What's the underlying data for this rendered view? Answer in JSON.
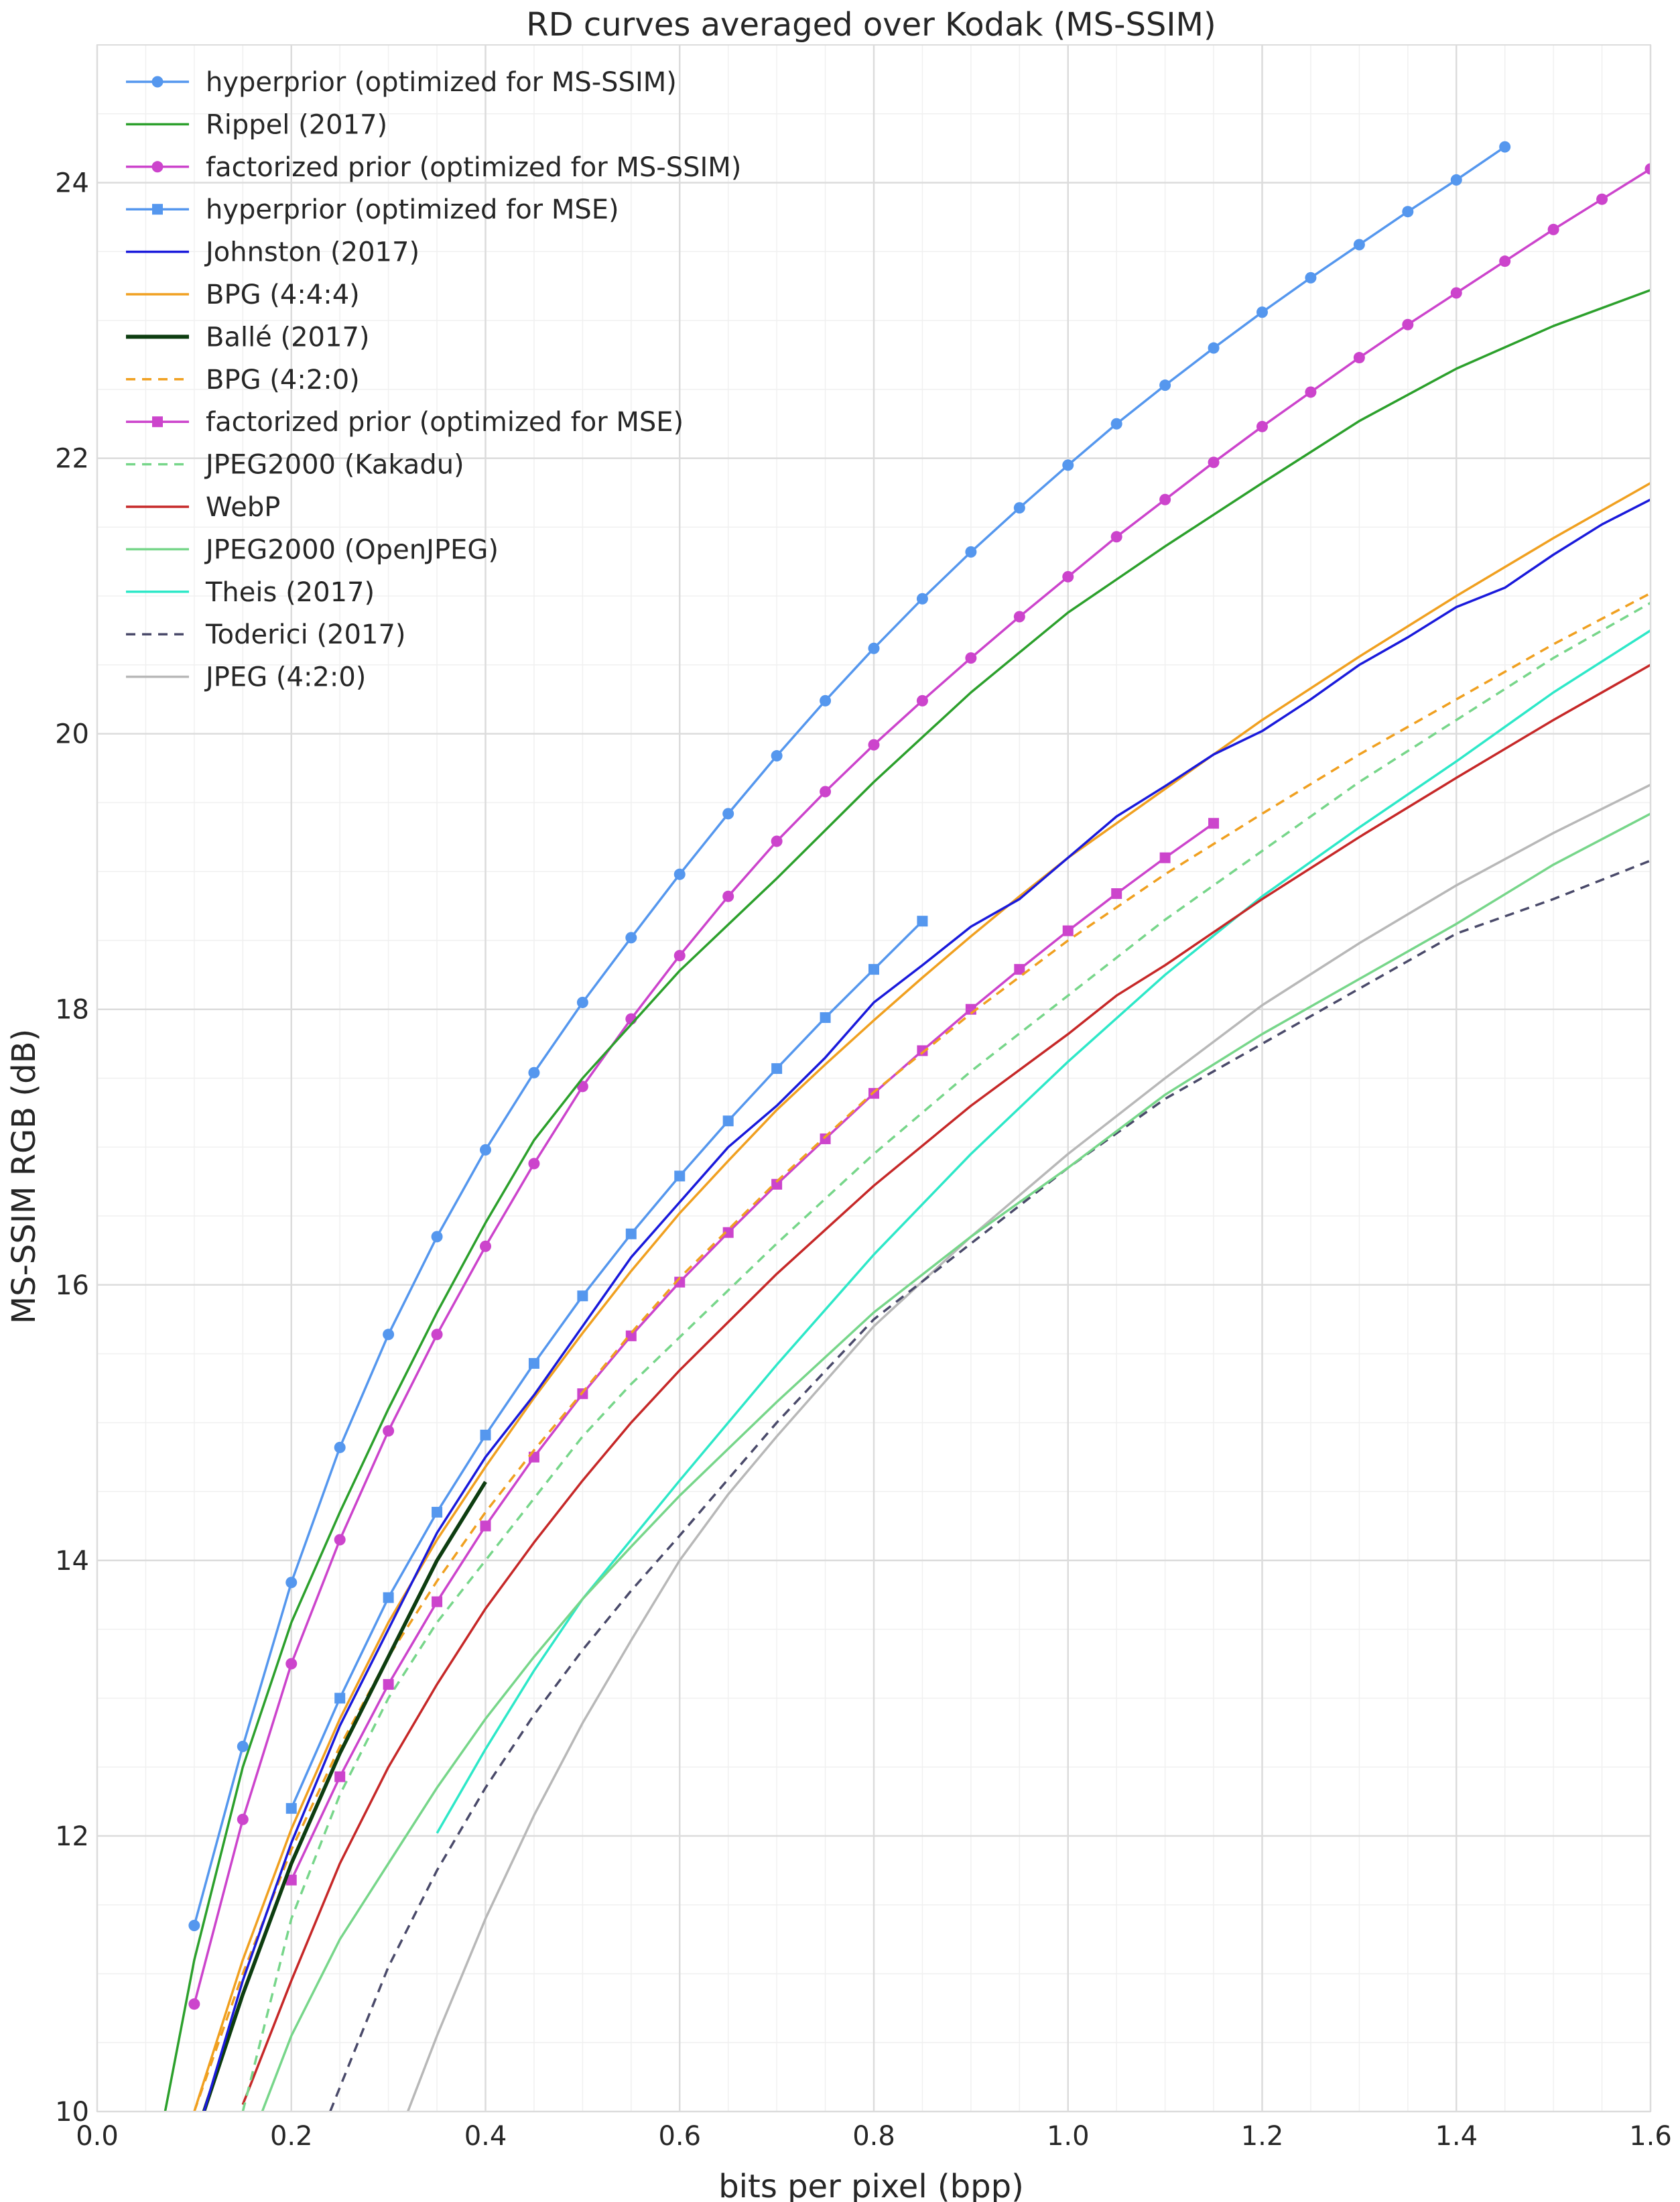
{
  "chart_data": {
    "type": "line",
    "title": "RD curves averaged over Kodak (MS-SSIM)",
    "xlabel": "bits per pixel (bpp)",
    "ylabel": "MS-SSIM RGB (dB)",
    "xlim": [
      0.0,
      1.6
    ],
    "ylim": [
      10,
      25
    ],
    "xticks": [
      0.0,
      0.2,
      0.4,
      0.6,
      0.8,
      1.0,
      1.2,
      1.4,
      1.6
    ],
    "xtick_labels": [
      "0.0",
      "0.2",
      "0.4",
      "0.6",
      "0.8",
      "1.0",
      "1.2",
      "1.4",
      "1.6"
    ],
    "yticks": [
      10,
      12,
      14,
      16,
      18,
      20,
      22,
      24
    ],
    "ytick_labels": [
      "10",
      "12",
      "14",
      "16",
      "18",
      "20",
      "22",
      "24"
    ],
    "grid": true,
    "legend_position": "top-left",
    "series": [
      {
        "name": "hyperprior (optimized for MS-SSIM)",
        "color": "#5597ee",
        "dash": "solid",
        "marker": "circle",
        "x": [
          0.1,
          0.15,
          0.2,
          0.25,
          0.3,
          0.35,
          0.4,
          0.45,
          0.5,
          0.55,
          0.6,
          0.65,
          0.7,
          0.75,
          0.8,
          0.85,
          0.9,
          0.95,
          1.0,
          1.05,
          1.1,
          1.15,
          1.2,
          1.25,
          1.3,
          1.35,
          1.4,
          1.45
        ],
        "y": [
          11.35,
          12.65,
          13.84,
          14.82,
          15.64,
          16.35,
          16.98,
          17.54,
          18.05,
          18.52,
          18.98,
          19.42,
          19.84,
          20.24,
          20.62,
          20.98,
          21.32,
          21.64,
          21.95,
          22.25,
          22.53,
          22.8,
          23.06,
          23.31,
          23.55,
          23.79,
          24.02,
          24.26
        ]
      },
      {
        "name": "Rippel (2017)",
        "color": "#2ca02c",
        "dash": "solid",
        "marker": "none",
        "x": [
          0.07,
          0.1,
          0.15,
          0.2,
          0.25,
          0.3,
          0.35,
          0.4,
          0.45,
          0.5,
          0.6,
          0.7,
          0.8,
          0.9,
          1.0,
          1.1,
          1.2,
          1.3,
          1.4,
          1.5,
          1.6
        ],
        "y": [
          10.0,
          11.1,
          12.5,
          13.55,
          14.35,
          15.1,
          15.8,
          16.45,
          17.05,
          17.5,
          18.28,
          18.95,
          19.65,
          20.3,
          20.88,
          21.36,
          21.82,
          22.27,
          22.65,
          22.96,
          23.22
        ]
      },
      {
        "name": "factorized prior (optimized for MS-SSIM)",
        "color": "#cc44cc",
        "dash": "solid",
        "marker": "circle",
        "x": [
          0.1,
          0.15,
          0.2,
          0.25,
          0.3,
          0.35,
          0.4,
          0.45,
          0.5,
          0.55,
          0.6,
          0.65,
          0.7,
          0.75,
          0.8,
          0.85,
          0.9,
          0.95,
          1.0,
          1.05,
          1.1,
          1.15,
          1.2,
          1.25,
          1.3,
          1.35,
          1.4,
          1.45,
          1.5,
          1.55,
          1.6
        ],
        "y": [
          10.78,
          12.12,
          13.25,
          14.15,
          14.94,
          15.64,
          16.28,
          16.88,
          17.44,
          17.93,
          18.39,
          18.82,
          19.22,
          19.58,
          19.92,
          20.24,
          20.55,
          20.85,
          21.14,
          21.43,
          21.7,
          21.97,
          22.23,
          22.48,
          22.73,
          22.97,
          23.2,
          23.43,
          23.66,
          23.88,
          24.1
        ]
      },
      {
        "name": "hyperprior (optimized for MSE)",
        "color": "#5597ee",
        "dash": "solid",
        "marker": "square",
        "x": [
          0.2,
          0.25,
          0.3,
          0.35,
          0.4,
          0.45,
          0.5,
          0.55,
          0.6,
          0.65,
          0.7,
          0.75,
          0.8,
          0.85
        ],
        "y": [
          12.2,
          13.0,
          13.73,
          14.35,
          14.91,
          15.43,
          15.92,
          16.37,
          16.79,
          17.19,
          17.57,
          17.94,
          18.29,
          18.64
        ]
      },
      {
        "name": "Johnston (2017)",
        "color": "#1a1adb",
        "dash": "solid",
        "marker": "none",
        "x": [
          0.11,
          0.15,
          0.2,
          0.25,
          0.3,
          0.35,
          0.4,
          0.45,
          0.5,
          0.55,
          0.6,
          0.65,
          0.7,
          0.75,
          0.8,
          0.85,
          0.9,
          0.95,
          1.0,
          1.05,
          1.1,
          1.15,
          1.2,
          1.25,
          1.3,
          1.35,
          1.4,
          1.45,
          1.5,
          1.55,
          1.6
        ],
        "y": [
          10.0,
          10.95,
          11.95,
          12.8,
          13.5,
          14.2,
          14.75,
          15.2,
          15.7,
          16.2,
          16.6,
          17.0,
          17.3,
          17.65,
          18.05,
          18.32,
          18.6,
          18.8,
          19.1,
          19.4,
          19.62,
          19.85,
          20.02,
          20.25,
          20.5,
          20.7,
          20.92,
          21.06,
          21.3,
          21.52,
          21.7
        ]
      },
      {
        "name": "BPG (4:4:4)",
        "color": "#f0a020",
        "dash": "solid",
        "marker": "none",
        "x": [
          0.1,
          0.15,
          0.2,
          0.25,
          0.3,
          0.35,
          0.4,
          0.45,
          0.5,
          0.55,
          0.6,
          0.65,
          0.7,
          0.75,
          0.8,
          0.85,
          0.9,
          0.95,
          1.0,
          1.1,
          1.2,
          1.3,
          1.4,
          1.5,
          1.6
        ],
        "y": [
          10.0,
          11.1,
          12.05,
          12.85,
          13.55,
          14.15,
          14.68,
          15.18,
          15.65,
          16.1,
          16.52,
          16.9,
          17.27,
          17.6,
          17.92,
          18.23,
          18.53,
          18.82,
          19.1,
          19.6,
          20.1,
          20.56,
          21.0,
          21.42,
          21.82
        ]
      },
      {
        "name": "Ballé (2017)",
        "color": "#0d3d10",
        "dash": "solid",
        "marker": "none",
        "x": [
          0.11,
          0.15,
          0.2,
          0.25,
          0.3,
          0.35,
          0.4
        ],
        "y": [
          10.0,
          10.85,
          11.8,
          12.6,
          13.3,
          14.0,
          14.57
        ]
      },
      {
        "name": "BPG (4:2:0)",
        "color": "#f0a020",
        "dash": "dashed",
        "marker": "none",
        "x": [
          0.1,
          0.15,
          0.2,
          0.25,
          0.3,
          0.35,
          0.4,
          0.45,
          0.5,
          0.55,
          0.6,
          0.7,
          0.8,
          0.9,
          1.0,
          1.1,
          1.2,
          1.3,
          1.4,
          1.5,
          1.6
        ],
        "y": [
          10.0,
          11.0,
          11.9,
          12.65,
          13.3,
          13.85,
          14.35,
          14.8,
          15.22,
          15.65,
          16.05,
          16.75,
          17.4,
          17.97,
          18.5,
          18.98,
          19.42,
          19.85,
          20.25,
          20.65,
          21.02
        ]
      },
      {
        "name": "factorized prior (optimized for MSE)",
        "color": "#cc44cc",
        "dash": "solid",
        "marker": "square",
        "x": [
          0.2,
          0.25,
          0.3,
          0.35,
          0.4,
          0.45,
          0.5,
          0.55,
          0.6,
          0.65,
          0.7,
          0.75,
          0.8,
          0.85,
          0.9,
          0.95,
          1.0,
          1.05,
          1.1,
          1.15
        ],
        "y": [
          11.68,
          12.43,
          13.1,
          13.7,
          14.25,
          14.75,
          15.21,
          15.63,
          16.02,
          16.38,
          16.73,
          17.06,
          17.39,
          17.7,
          18.0,
          18.29,
          18.57,
          18.84,
          19.1,
          19.35
        ]
      },
      {
        "name": "JPEG2000 (Kakadu)",
        "color": "#77d68a",
        "dash": "dashed",
        "marker": "none",
        "x": [
          0.15,
          0.2,
          0.25,
          0.3,
          0.35,
          0.4,
          0.45,
          0.5,
          0.55,
          0.6,
          0.7,
          0.8,
          0.9,
          1.0,
          1.1,
          1.2,
          1.3,
          1.4,
          1.5,
          1.6
        ],
        "y": [
          10.0,
          11.4,
          12.3,
          13.0,
          13.55,
          14.0,
          14.45,
          14.9,
          15.28,
          15.62,
          16.3,
          16.95,
          17.55,
          18.1,
          18.65,
          19.15,
          19.65,
          20.1,
          20.55,
          20.95
        ]
      },
      {
        "name": "WebP",
        "color": "#c62828",
        "dash": "solid",
        "marker": "none",
        "x": [
          0.15,
          0.2,
          0.25,
          0.3,
          0.35,
          0.4,
          0.45,
          0.5,
          0.55,
          0.6,
          0.7,
          0.8,
          0.9,
          1.0,
          1.05,
          1.1,
          1.2,
          1.3,
          1.4,
          1.5,
          1.6
        ],
        "y": [
          10.05,
          10.95,
          11.8,
          12.5,
          13.1,
          13.65,
          14.13,
          14.58,
          15.0,
          15.38,
          16.08,
          16.72,
          17.3,
          17.82,
          18.1,
          18.32,
          18.8,
          19.25,
          19.68,
          20.1,
          20.5
        ]
      },
      {
        "name": "JPEG2000 (OpenJPEG)",
        "color": "#77d68a",
        "dash": "solid",
        "marker": "none",
        "x": [
          0.17,
          0.2,
          0.25,
          0.3,
          0.35,
          0.4,
          0.45,
          0.5,
          0.55,
          0.6,
          0.7,
          0.8,
          0.9,
          1.0,
          1.1,
          1.2,
          1.3,
          1.4,
          1.5,
          1.6
        ],
        "y": [
          10.0,
          10.55,
          11.25,
          11.8,
          12.35,
          12.85,
          13.3,
          13.72,
          14.1,
          14.47,
          15.15,
          15.8,
          16.35,
          16.85,
          17.38,
          17.82,
          18.22,
          18.62,
          19.05,
          19.42
        ]
      },
      {
        "name": "Theis (2017)",
        "color": "#2ee8c8",
        "dash": "solid",
        "marker": "none",
        "x": [
          0.35,
          0.4,
          0.45,
          0.5,
          0.55,
          0.6,
          0.7,
          0.8,
          0.9,
          1.0,
          1.1,
          1.2,
          1.3,
          1.4,
          1.5,
          1.6
        ],
        "y": [
          12.02,
          12.63,
          13.2,
          13.72,
          14.15,
          14.58,
          15.42,
          16.22,
          16.95,
          17.62,
          18.25,
          18.82,
          19.32,
          19.8,
          20.3,
          20.75
        ]
      },
      {
        "name": "Toderici (2017)",
        "color": "#4a4a6a",
        "dash": "dashed",
        "marker": "none",
        "x": [
          0.24,
          0.3,
          0.35,
          0.4,
          0.45,
          0.5,
          0.55,
          0.6,
          0.7,
          0.8,
          0.9,
          1.0,
          1.1,
          1.2,
          1.3,
          1.4,
          1.5,
          1.6
        ],
        "y": [
          10.0,
          11.05,
          11.75,
          12.35,
          12.88,
          13.35,
          13.78,
          14.18,
          15.0,
          15.75,
          16.3,
          16.85,
          17.35,
          17.75,
          18.15,
          18.55,
          18.8,
          19.08
        ]
      },
      {
        "name": "JPEG (4:2:0)",
        "color": "#b8b8b8",
        "dash": "solid",
        "marker": "none",
        "x": [
          0.32,
          0.35,
          0.4,
          0.45,
          0.5,
          0.55,
          0.6,
          0.65,
          0.7,
          0.8,
          0.9,
          1.0,
          1.1,
          1.2,
          1.3,
          1.4,
          1.5,
          1.6
        ],
        "y": [
          10.0,
          10.55,
          11.4,
          12.15,
          12.82,
          13.42,
          14.0,
          14.48,
          14.9,
          15.7,
          16.35,
          16.95,
          17.5,
          18.03,
          18.48,
          18.9,
          19.28,
          19.63
        ]
      }
    ]
  }
}
